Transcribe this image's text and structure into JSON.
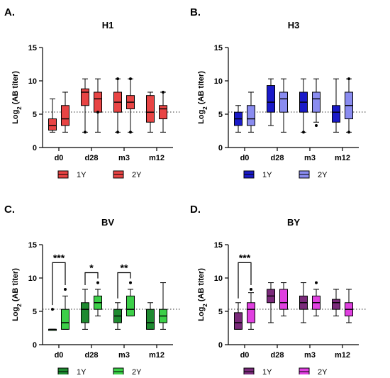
{
  "chart_data": [
    {
      "type": "box",
      "letter": "A.",
      "title": "H1",
      "ylabel": "Log2 (AB titer)",
      "ylim": [
        0,
        15
      ],
      "yticks": [
        0,
        5,
        10,
        15
      ],
      "reference_line": 5.32,
      "categories": [
        "d0",
        "d28",
        "m3",
        "m12"
      ],
      "series": [
        {
          "name": "1Y",
          "color": "#e84444",
          "boxes": [
            {
              "min": 2.3,
              "q1": 2.6,
              "median": 3.3,
              "q3": 4.3,
              "max": 7.3,
              "outliers": []
            },
            {
              "min": 2.3,
              "q1": 6.3,
              "median": 8.3,
              "q3": 8.8,
              "max": 10.3,
              "outliers": [
                2.3
              ]
            },
            {
              "min": 2.3,
              "q1": 5.3,
              "median": 6.8,
              "q3": 8.3,
              "max": 10.3,
              "outliers": [
                2.3,
                10.3
              ]
            },
            {
              "min": 2.3,
              "q1": 3.8,
              "median": 5.3,
              "q3": 7.8,
              "max": 8.3,
              "outliers": []
            }
          ]
        },
        {
          "name": "2Y",
          "color": "#e84444",
          "boxes": [
            {
              "min": 2.3,
              "q1": 3.3,
              "median": 4.3,
              "q3": 6.3,
              "max": 8.3,
              "outliers": []
            },
            {
              "min": 2.3,
              "q1": 5.3,
              "median": 7.3,
              "q3": 8.3,
              "max": 10.3,
              "outliers": [
                5.3
              ]
            },
            {
              "min": 2.3,
              "q1": 5.8,
              "median": 6.8,
              "q3": 7.8,
              "max": 10.3,
              "outliers": [
                2.3,
                10.3
              ]
            },
            {
              "min": 2.3,
              "q1": 4.3,
              "median": 5.8,
              "q3": 6.3,
              "max": 8.3,
              "outliers": [
                8.3
              ]
            }
          ]
        }
      ],
      "significance": []
    },
    {
      "type": "box",
      "letter": "B.",
      "title": "H3",
      "ylabel": "Log2 (AB titer)",
      "ylim": [
        0,
        15
      ],
      "yticks": [
        0,
        5,
        10,
        15
      ],
      "reference_line": 5.32,
      "categories": [
        "d0",
        "d28",
        "m3",
        "m12"
      ],
      "series": [
        {
          "name": "1Y",
          "color": "#1a1ac8",
          "boxes": [
            {
              "min": 2.3,
              "q1": 3.3,
              "median": 4.3,
              "q3": 5.3,
              "max": 6.3,
              "outliers": []
            },
            {
              "min": 3.3,
              "q1": 5.3,
              "median": 6.8,
              "q3": 9.3,
              "max": 10.3,
              "outliers": []
            },
            {
              "min": 2.3,
              "q1": 5.3,
              "median": 6.8,
              "q3": 8.3,
              "max": 10.3,
              "outliers": [
                2.3
              ]
            },
            {
              "min": 2.3,
              "q1": 3.8,
              "median": 5.3,
              "q3": 6.3,
              "max": 10.3,
              "outliers": []
            }
          ]
        },
        {
          "name": "2Y",
          "color": "#8a8cf0",
          "boxes": [
            {
              "min": 2.3,
              "q1": 3.3,
              "median": 4.3,
              "q3": 6.3,
              "max": 8.3,
              "outliers": []
            },
            {
              "min": 2.3,
              "q1": 5.3,
              "median": 7.3,
              "q3": 8.3,
              "max": 10.3,
              "outliers": []
            },
            {
              "min": 3.8,
              "q1": 5.3,
              "median": 7.3,
              "q3": 8.3,
              "max": 10.3,
              "outliers": [
                3.3
              ]
            },
            {
              "min": 2.3,
              "q1": 4.3,
              "median": 6.3,
              "q3": 8.3,
              "max": 10.3,
              "outliers": [
                2.3,
                10.3
              ]
            }
          ]
        }
      ],
      "significance": []
    },
    {
      "type": "box",
      "letter": "C.",
      "title": "BV",
      "ylabel": "Log2 (AB titer)",
      "ylim": [
        0,
        15
      ],
      "yticks": [
        0,
        5,
        10,
        15
      ],
      "reference_line": 5.32,
      "categories": [
        "d0",
        "d28",
        "m3",
        "m12"
      ],
      "series": [
        {
          "name": "1Y",
          "color": "#1e8a30",
          "boxes": [
            {
              "min": 2.3,
              "q1": 2.3,
              "median": 2.3,
              "q3": 2.3,
              "max": 2.3,
              "outliers": [
                5.3
              ]
            },
            {
              "min": 2.3,
              "q1": 3.3,
              "median": 5.3,
              "q3": 6.3,
              "max": 8.3,
              "outliers": []
            },
            {
              "min": 2.3,
              "q1": 3.3,
              "median": 4.3,
              "q3": 5.3,
              "max": 6.3,
              "outliers": []
            },
            {
              "min": 2.3,
              "q1": 2.3,
              "median": 3.3,
              "q3": 5.3,
              "max": 6.3,
              "outliers": []
            }
          ]
        },
        {
          "name": "2Y",
          "color": "#3ccf48",
          "boxes": [
            {
              "min": 2.3,
              "q1": 2.3,
              "median": 3.3,
              "q3": 5.3,
              "max": 7.3,
              "outliers": [
                8.3
              ]
            },
            {
              "min": 4.3,
              "q1": 5.3,
              "median": 6.3,
              "q3": 7.3,
              "max": 8.3,
              "outliers": [
                9.3
              ]
            },
            {
              "min": 4.3,
              "q1": 4.3,
              "median": 5.3,
              "q3": 7.3,
              "max": 8.3,
              "outliers": [
                9.3
              ]
            },
            {
              "min": 2.3,
              "q1": 3.3,
              "median": 4.3,
              "q3": 5.3,
              "max": 9.3,
              "outliers": []
            }
          ]
        }
      ],
      "significance": [
        {
          "category": 0,
          "label": "***",
          "y": 12.3
        },
        {
          "category": 1,
          "label": "*",
          "y": 10.8
        },
        {
          "category": 2,
          "label": "**",
          "y": 10.8
        }
      ]
    },
    {
      "type": "box",
      "letter": "D.",
      "title": "BY",
      "ylabel": "Log2 (AB titer)",
      "ylim": [
        0,
        15
      ],
      "yticks": [
        0,
        5,
        10,
        15
      ],
      "reference_line": 5.32,
      "categories": [
        "d0",
        "d28",
        "m3",
        "m12"
      ],
      "series": [
        {
          "name": "1Y",
          "color": "#7a2a7a",
          "boxes": [
            {
              "min": 2.3,
              "q1": 2.3,
              "median": 3.3,
              "q3": 4.8,
              "max": 6.3,
              "outliers": []
            },
            {
              "min": 3.3,
              "q1": 6.3,
              "median": 7.3,
              "q3": 8.3,
              "max": 9.3,
              "outliers": []
            },
            {
              "min": 3.3,
              "q1": 5.3,
              "median": 6.3,
              "q3": 7.3,
              "max": 9.3,
              "outliers": []
            },
            {
              "min": 4.3,
              "q1": 5.3,
              "median": 6.3,
              "q3": 6.8,
              "max": 8.3,
              "outliers": []
            }
          ]
        },
        {
          "name": "2Y",
          "color": "#e040e0",
          "boxes": [
            {
              "min": 2.3,
              "q1": 3.3,
              "median": 5.3,
              "q3": 6.3,
              "max": 7.8,
              "outliers": [
                8.3
              ]
            },
            {
              "min": 4.3,
              "q1": 5.3,
              "median": 6.3,
              "q3": 8.3,
              "max": 9.3,
              "outliers": []
            },
            {
              "min": 4.3,
              "q1": 5.3,
              "median": 6.3,
              "q3": 7.3,
              "max": 8.3,
              "outliers": [
                9.3
              ]
            },
            {
              "min": 3.3,
              "q1": 4.3,
              "median": 5.3,
              "q3": 6.3,
              "max": 8.3,
              "outliers": []
            }
          ]
        }
      ],
      "significance": [
        {
          "category": 0,
          "label": "***",
          "y": 12.3
        }
      ]
    }
  ]
}
